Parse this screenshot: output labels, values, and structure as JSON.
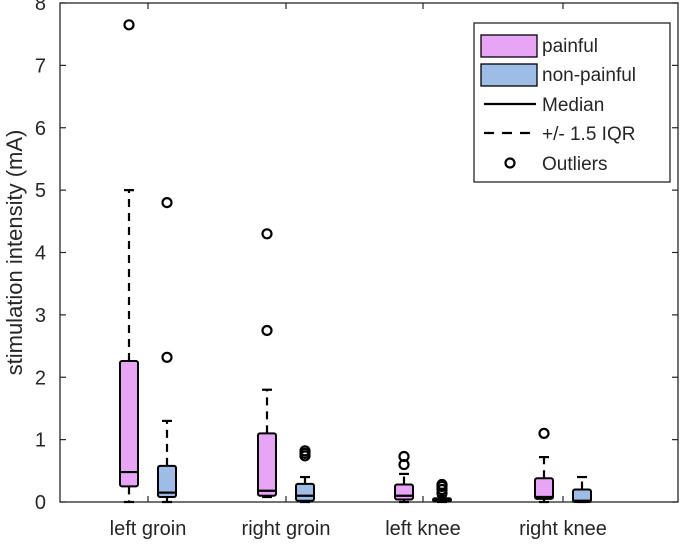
{
  "chart_data": {
    "type": "boxplot",
    "ylabel": "stimulation intensity (mA)",
    "ylim": [
      0,
      8
    ],
    "yticks": [
      0,
      1,
      2,
      3,
      4,
      5,
      6,
      7,
      8
    ],
    "categories": [
      "left groin",
      "right groin",
      "left knee",
      "right knee"
    ],
    "legend": {
      "placement": "top-right",
      "entries": [
        {
          "key": "painful",
          "label": "painful",
          "kind": "patch"
        },
        {
          "key": "non-painful",
          "label": "non-painful",
          "kind": "patch"
        },
        {
          "key": "median",
          "label": "Median",
          "kind": "solid-line"
        },
        {
          "key": "iqr",
          "label": "+/- 1.5 IQR",
          "kind": "dashed-line"
        },
        {
          "key": "outliers",
          "label": "Outliers",
          "kind": "circle"
        }
      ]
    },
    "series": [
      {
        "name": "painful",
        "color": "#E9A5F5",
        "boxes": [
          {
            "category": "left groin",
            "whisker_low": 0.0,
            "q1": 0.25,
            "median": 0.48,
            "q3": 2.26,
            "whisker_high": 5.0,
            "outliers": [
              7.65
            ]
          },
          {
            "category": "right groin",
            "whisker_low": 0.08,
            "q1": 0.1,
            "median": 0.18,
            "q3": 1.1,
            "whisker_high": 1.8,
            "outliers": [
              2.75,
              4.3
            ]
          },
          {
            "category": "left knee",
            "whisker_low": 0.0,
            "q1": 0.04,
            "median": 0.1,
            "q3": 0.28,
            "whisker_high": 0.45,
            "outliers": [
              0.6,
              0.73
            ]
          },
          {
            "category": "right knee",
            "whisker_low": 0.0,
            "q1": 0.05,
            "median": 0.08,
            "q3": 0.38,
            "whisker_high": 0.72,
            "outliers": [
              1.1
            ]
          }
        ]
      },
      {
        "name": "non-painful",
        "color": "#9DBDE6",
        "boxes": [
          {
            "category": "left groin",
            "whisker_low": 0.0,
            "q1": 0.08,
            "median": 0.15,
            "q3": 0.58,
            "whisker_high": 1.3,
            "outliers": [
              2.32,
              4.8
            ]
          },
          {
            "category": "right groin",
            "whisker_low": 0.0,
            "q1": 0.02,
            "median": 0.1,
            "q3": 0.29,
            "whisker_high": 0.4,
            "outliers": [
              0.74,
              0.78,
              0.82
            ]
          },
          {
            "category": "left knee",
            "whisker_low": 0.0,
            "q1": 0.01,
            "median": 0.03,
            "q3": 0.06,
            "whisker_high": 0.1,
            "outliers": [
              0.14,
              0.2,
              0.25,
              0.28
            ]
          },
          {
            "category": "right knee",
            "whisker_low": 0.0,
            "q1": 0.0,
            "median": 0.02,
            "q3": 0.2,
            "whisker_high": 0.4,
            "outliers": []
          }
        ]
      }
    ],
    "grid": false
  }
}
